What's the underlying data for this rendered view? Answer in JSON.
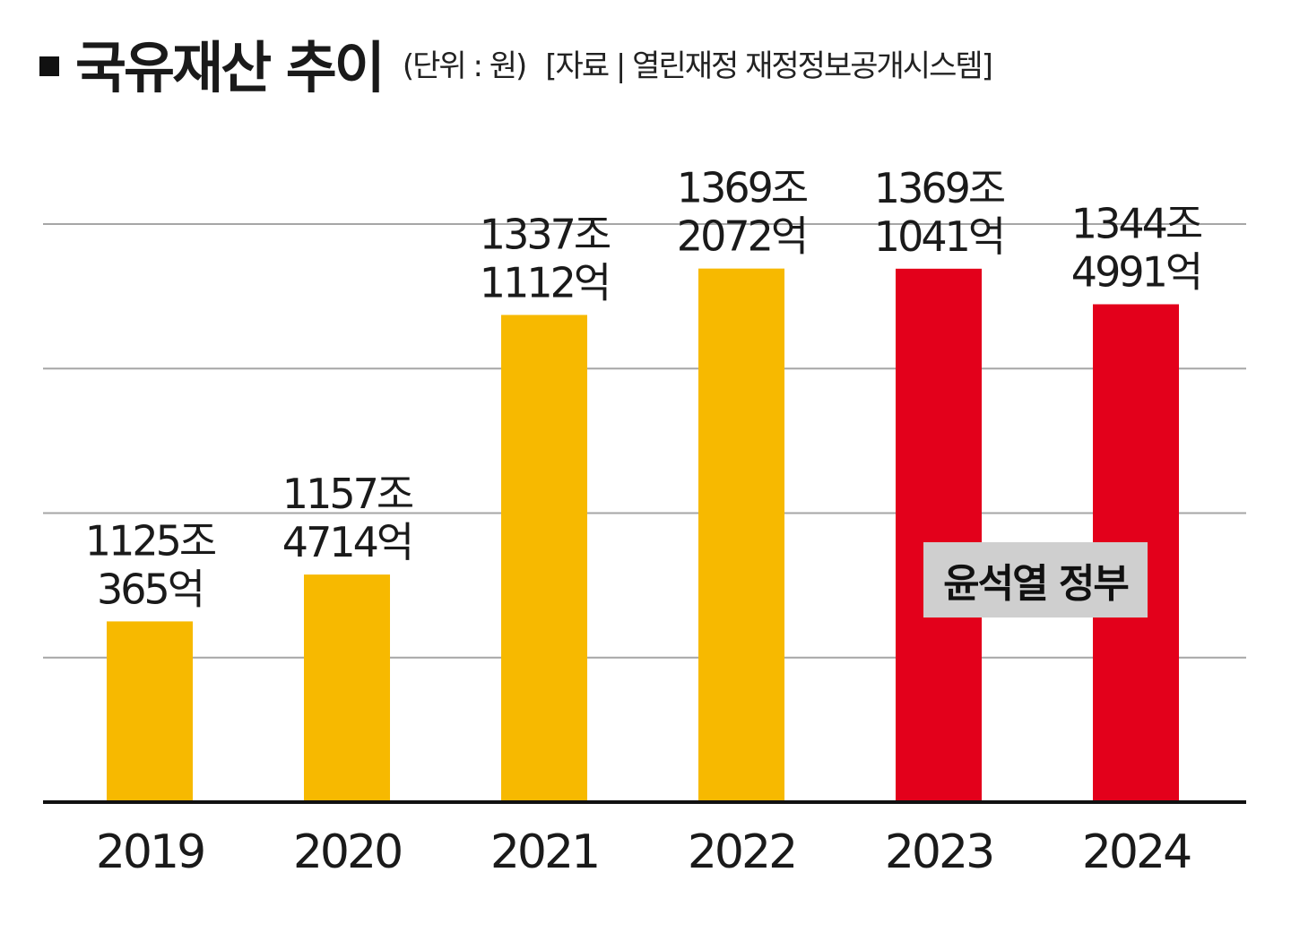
{
  "header": {
    "title": "국유재산 추이",
    "unit": "(단위 : 원)",
    "source": "[자료 | 열린재정 재정정보공개시스템]"
  },
  "badge": {
    "label": "윤석열 정부"
  },
  "colors": {
    "yellow": "#f7b900",
    "red": "#e3001b",
    "grid": "#a6a6a6",
    "axis": "#111111"
  },
  "chart_data": {
    "type": "bar",
    "title": "국유재산 추이",
    "unit": "(단위 : 원)",
    "categories": [
      "2019",
      "2020",
      "2021",
      "2022",
      "2023",
      "2024"
    ],
    "values": [
      1125.0365,
      1157.4714,
      1337.1112,
      1369.2072,
      1369.1041,
      1344.4991
    ],
    "value_unit": "조",
    "data_labels": [
      [
        "1125조",
        "365억"
      ],
      [
        "1157조",
        "4714억"
      ],
      [
        "1337조",
        "1112억"
      ],
      [
        "1369조",
        "2072억"
      ],
      [
        "1369조",
        "1041억"
      ],
      [
        "1344조",
        "4991억"
      ]
    ],
    "bar_colors": [
      "#f7b900",
      "#f7b900",
      "#f7b900",
      "#f7b900",
      "#e3001b",
      "#e3001b"
    ],
    "ylim": [
      1000,
      1400
    ],
    "grid": true,
    "annotations": [
      "윤석열 정부"
    ]
  }
}
